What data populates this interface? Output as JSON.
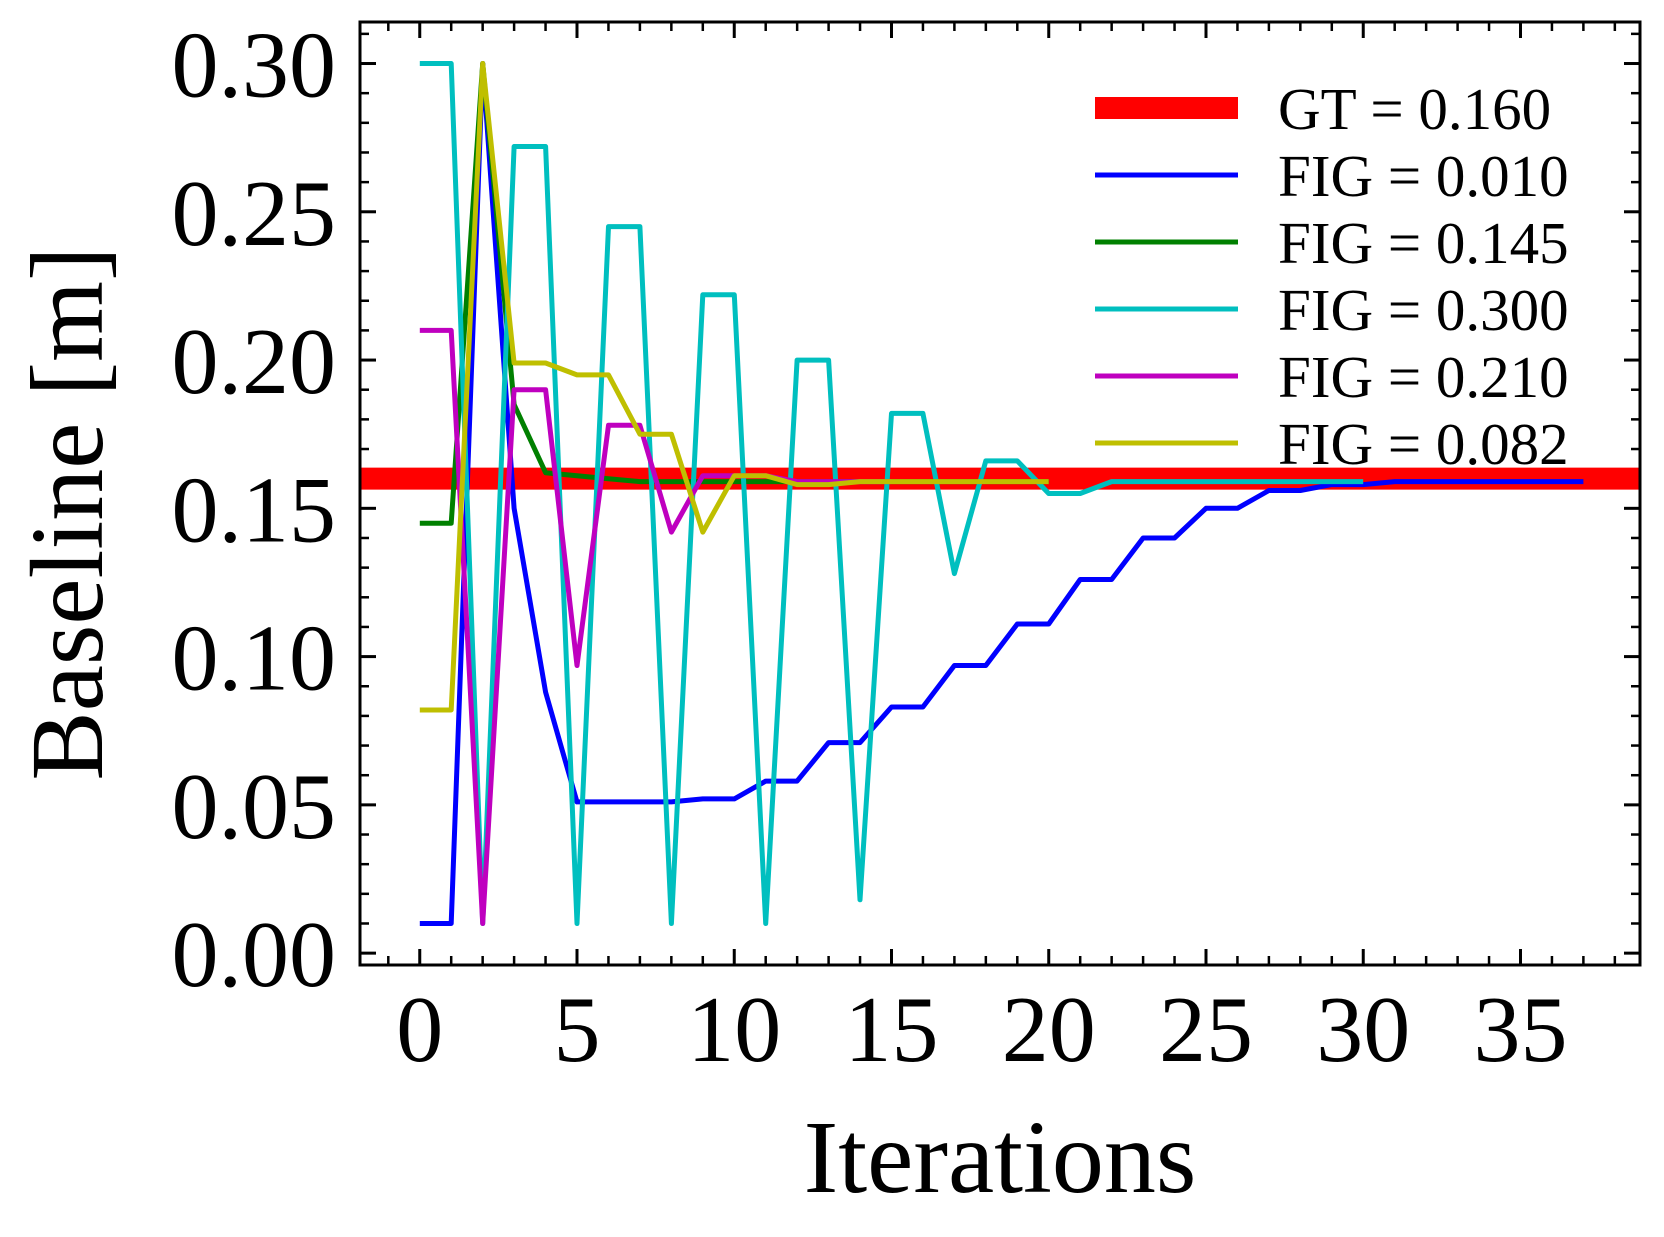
{
  "chart_data": {
    "type": "line",
    "xlabel": "Iterations",
    "ylabel": "Baseline [m]",
    "xlim": [
      -1.9,
      38.8
    ],
    "ylim": [
      -0.004,
      0.314
    ],
    "x_ticks": [
      0,
      5,
      10,
      15,
      20,
      25,
      30,
      35
    ],
    "x_tick_labels": [
      "0",
      "5",
      "10",
      "15",
      "20",
      "25",
      "30",
      "35"
    ],
    "y_ticks": [
      0.0,
      0.05,
      0.1,
      0.15,
      0.2,
      0.25,
      0.3
    ],
    "y_tick_labels": [
      "0.00",
      "0.05",
      "0.10",
      "0.15",
      "0.20",
      "0.25",
      "0.30"
    ],
    "grid": false,
    "legend_position": "top-right",
    "reference_line": {
      "label": "GT = 0.160",
      "y": 0.16,
      "color": "#ff0000"
    },
    "series": [
      {
        "name": "FIG = 0.010",
        "color": "#0000ff",
        "x": [
          0,
          1,
          2,
          3,
          4,
          5,
          6,
          7,
          8,
          9,
          10,
          11,
          12,
          13,
          14,
          15,
          16,
          17,
          18,
          19,
          20,
          21,
          22,
          23,
          24,
          25,
          26,
          27,
          28,
          29,
          30,
          31,
          32,
          33,
          34,
          35,
          36,
          37
        ],
        "y": [
          0.01,
          0.01,
          0.3,
          0.15,
          0.088,
          0.051,
          0.051,
          0.051,
          0.051,
          0.052,
          0.052,
          0.058,
          0.058,
          0.071,
          0.071,
          0.083,
          0.083,
          0.097,
          0.097,
          0.111,
          0.111,
          0.126,
          0.126,
          0.14,
          0.14,
          0.15,
          0.15,
          0.156,
          0.156,
          0.158,
          0.158,
          0.159,
          0.159,
          0.159,
          0.159,
          0.159,
          0.159,
          0.159
        ]
      },
      {
        "name": "FIG = 0.145",
        "color": "#008000",
        "x": [
          0,
          1,
          2,
          3,
          4,
          5,
          6,
          7,
          8,
          9,
          10,
          11,
          12,
          13,
          14,
          15,
          16,
          17,
          18,
          19,
          20
        ],
        "y": [
          0.145,
          0.145,
          0.3,
          0.185,
          0.162,
          0.161,
          0.16,
          0.159,
          0.159,
          0.159,
          0.159,
          0.159,
          0.159,
          0.159,
          0.159,
          0.159,
          0.159,
          0.159,
          0.159,
          0.159,
          0.159
        ]
      },
      {
        "name": "FIG = 0.300",
        "color": "#00bfbf",
        "x": [
          0,
          1,
          2,
          3,
          4,
          5,
          6,
          7,
          8,
          9,
          10,
          11,
          12,
          13,
          14,
          15,
          16,
          17,
          18,
          19,
          20,
          21,
          22,
          23,
          24,
          25,
          26,
          27,
          28,
          29,
          30
        ],
        "y": [
          0.3,
          0.3,
          0.01,
          0.272,
          0.272,
          0.01,
          0.245,
          0.245,
          0.01,
          0.222,
          0.222,
          0.01,
          0.2,
          0.2,
          0.018,
          0.182,
          0.182,
          0.128,
          0.166,
          0.166,
          0.155,
          0.155,
          0.159,
          0.159,
          0.159,
          0.159,
          0.159,
          0.159,
          0.159,
          0.159,
          0.159
        ]
      },
      {
        "name": "FIG = 0.210",
        "color": "#bf00bf",
        "x": [
          0,
          1,
          2,
          3,
          4,
          5,
          6,
          7,
          8,
          9,
          10,
          11,
          12,
          13,
          14,
          15
        ],
        "y": [
          0.21,
          0.21,
          0.01,
          0.19,
          0.19,
          0.097,
          0.178,
          0.178,
          0.142,
          0.161,
          0.161,
          0.161,
          0.159,
          0.159,
          0.159,
          0.159
        ]
      },
      {
        "name": "FIG = 0.082",
        "color": "#bfbf00",
        "x": [
          0,
          1,
          2,
          3,
          4,
          5,
          6,
          7,
          8,
          9,
          10,
          11,
          12,
          13,
          14,
          15,
          16,
          17,
          18,
          19,
          20
        ],
        "y": [
          0.082,
          0.082,
          0.3,
          0.199,
          0.199,
          0.195,
          0.195,
          0.175,
          0.175,
          0.142,
          0.161,
          0.161,
          0.158,
          0.158,
          0.159,
          0.159,
          0.159,
          0.159,
          0.159,
          0.159,
          0.159
        ]
      }
    ]
  }
}
